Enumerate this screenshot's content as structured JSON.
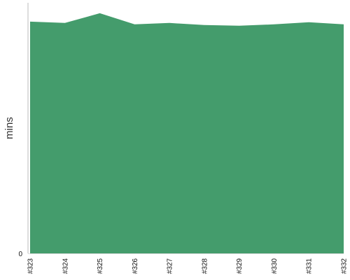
{
  "chart_data": {
    "type": "area",
    "categories": [
      "#323",
      "#324",
      "#325",
      "#326",
      "#327",
      "#328",
      "#329",
      "#330",
      "#331",
      "#332"
    ],
    "series": [
      {
        "values": [
          33.3,
          33.1,
          34.5,
          32.9,
          33.1,
          32.8,
          32.7,
          32.9,
          33.2,
          32.9
        ]
      }
    ],
    "ylabel": "mins",
    "y_tick_labels": [
      "0"
    ],
    "ylim": [
      0,
      36
    ],
    "grid": false,
    "legend": "none",
    "fill_color": "#449c6c",
    "axis_color": "#bbbbbb"
  }
}
